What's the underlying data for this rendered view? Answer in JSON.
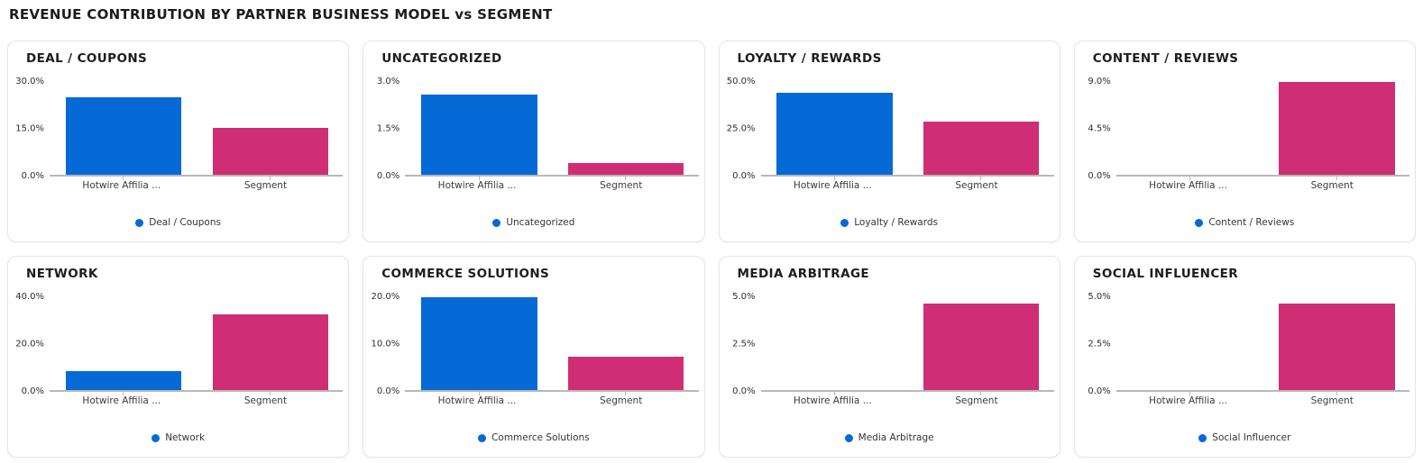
{
  "header": {
    "title": "REVENUE CONTRIBUTION BY PARTNER BUSINESS MODEL vs SEGMENT"
  },
  "colors": {
    "bar_colors": [
      "#0569D6",
      "#D02E74"
    ],
    "legend_dot": "#0569D6",
    "axis": "#b8b8b8"
  },
  "chart_data": [
    {
      "type": "bar",
      "title": "DEAL / COUPONS",
      "legend": "Deal / Coupons",
      "categories": [
        "Hotwire Affilia ...",
        "Segment"
      ],
      "values": [
        24.7,
        15.0
      ],
      "unit": "%",
      "ylim": [
        0,
        30
      ],
      "yticks": [
        "30.0%",
        "15.0%",
        "0.0%"
      ],
      "legend_position": "bottom-center",
      "grid": false
    },
    {
      "type": "bar",
      "title": "UNCATEGORIZED",
      "legend": "Uncategorized",
      "categories": [
        "Hotwire Affilia ...",
        "Segment"
      ],
      "values": [
        2.58,
        0.38
      ],
      "unit": "%",
      "ylim": [
        0,
        3
      ],
      "yticks": [
        "3.0%",
        "1.5%",
        "0.0%"
      ],
      "legend_position": "bottom-center",
      "grid": false
    },
    {
      "type": "bar",
      "title": "LOYALTY / REWARDS",
      "legend": "Loyalty / Rewards",
      "categories": [
        "Hotwire Affilia ...",
        "Segment"
      ],
      "values": [
        43.8,
        28.6
      ],
      "unit": "%",
      "ylim": [
        0,
        50
      ],
      "yticks": [
        "50.0%",
        "25.0%",
        "0.0%"
      ],
      "legend_position": "bottom-center",
      "grid": false
    },
    {
      "type": "bar",
      "title": "CONTENT / REVIEWS",
      "legend": "Content / Reviews",
      "categories": [
        "Hotwire Affilia ...",
        "Segment"
      ],
      "values": [
        0,
        8.9
      ],
      "unit": "%",
      "ylim": [
        0,
        9
      ],
      "yticks": [
        "9.0%",
        "4.5%",
        "0.0%"
      ],
      "legend_position": "bottom-center",
      "grid": false
    },
    {
      "type": "bar",
      "title": "NETWORK",
      "legend": "Network",
      "categories": [
        "Hotwire Affilia ...",
        "Segment"
      ],
      "values": [
        8.1,
        32.3
      ],
      "unit": "%",
      "ylim": [
        0,
        40
      ],
      "yticks": [
        "40.0%",
        "20.0%",
        "0.0%"
      ],
      "legend_position": "bottom-center",
      "grid": false
    },
    {
      "type": "bar",
      "title": "COMMERCE SOLUTIONS",
      "legend": "Commerce Solutions",
      "categories": [
        "Hotwire Affilia ...",
        "Segment"
      ],
      "values": [
        19.9,
        7.1
      ],
      "unit": "%",
      "ylim": [
        0,
        20
      ],
      "yticks": [
        "20.0%",
        "10.0%",
        "0.0%"
      ],
      "legend_position": "bottom-center",
      "grid": false
    },
    {
      "type": "bar",
      "title": "MEDIA ARBITRAGE",
      "legend": "Media Arbitrage",
      "categories": [
        "Hotwire Affilia ...",
        "Segment"
      ],
      "values": [
        0,
        4.6
      ],
      "unit": "%",
      "ylim": [
        0,
        5
      ],
      "yticks": [
        "5.0%",
        "2.5%",
        "0.0%"
      ],
      "legend_position": "bottom-center",
      "grid": false
    },
    {
      "type": "bar",
      "title": "SOCIAL INFLUENCER",
      "legend": "Social Influencer",
      "categories": [
        "Hotwire Affilia ...",
        "Segment"
      ],
      "values": [
        0,
        4.6
      ],
      "unit": "%",
      "ylim": [
        0,
        5
      ],
      "yticks": [
        "5.0%",
        "2.5%",
        "0.0%"
      ],
      "legend_position": "bottom-center",
      "grid": false
    }
  ]
}
